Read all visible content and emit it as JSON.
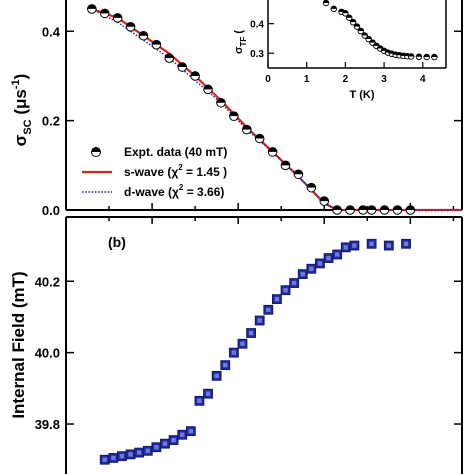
{
  "chart_data": [
    {
      "type": "scatter",
      "panel": "(a) main",
      "ylabel": "σ_SC (μs⁻¹)",
      "ylabel_main": "σ",
      "ylabel_sub": "SC",
      "ylabel_unit": "(μs",
      "ylabel_exp": "-1",
      "ylabel_close": ")",
      "xlim": [
        0.0,
        4.6
      ],
      "ylim": [
        0.0,
        0.47
      ],
      "yticks": [
        "0.0",
        "0.2",
        "0.4"
      ],
      "series": [
        {
          "name": "Expt. data (40 mT)",
          "kind": "points",
          "color": "#000000",
          "x": [
            0.3,
            0.45,
            0.6,
            0.75,
            0.9,
            1.05,
            1.2,
            1.35,
            1.5,
            1.65,
            1.8,
            1.95,
            2.1,
            2.25,
            2.4,
            2.55,
            2.7,
            2.85,
            3.0,
            3.15,
            3.3,
            3.45,
            3.55,
            3.7,
            3.85,
            4.0
          ],
          "y": [
            0.45,
            0.44,
            0.43,
            0.41,
            0.39,
            0.37,
            0.34,
            0.32,
            0.3,
            0.27,
            0.24,
            0.21,
            0.18,
            0.16,
            0.13,
            0.1,
            0.08,
            0.05,
            0.02,
            0.0,
            0.0,
            0.0,
            0.0,
            0.0,
            0.0,
            0.0
          ]
        },
        {
          "name": "s-wave",
          "chi2": "1.45",
          "kind": "line",
          "color": "#e0221b",
          "x": [
            0.3,
            0.6,
            0.9,
            1.2,
            1.5,
            1.8,
            2.1,
            2.4,
            2.7,
            2.85,
            3.0,
            3.15,
            4.6
          ],
          "y": [
            0.45,
            0.43,
            0.39,
            0.35,
            0.3,
            0.245,
            0.185,
            0.13,
            0.075,
            0.045,
            0.015,
            0.0,
            0.0
          ]
        },
        {
          "name": "d-wave",
          "chi2": "3.66",
          "kind": "dotted-line",
          "color": "#1f2a9e",
          "x": [
            0.3,
            0.6,
            0.9,
            1.2,
            1.5,
            1.8,
            2.1,
            2.4,
            2.7,
            2.85,
            3.0,
            3.15,
            4.6
          ],
          "y": [
            0.45,
            0.42,
            0.38,
            0.34,
            0.29,
            0.24,
            0.18,
            0.13,
            0.075,
            0.045,
            0.017,
            0.0,
            0.0
          ]
        }
      ],
      "legend": {
        "placement": "lower-left",
        "entries": [
          {
            "text": "Expt. data (40 mT)"
          },
          {
            "prefix": "s-wave  (χ",
            "exp": "2",
            "suffix": " = 1.45 )"
          },
          {
            "prefix": "d-wave  (χ",
            "exp": "2",
            "suffix": " = 3.66)"
          }
        ]
      }
    },
    {
      "type": "scatter",
      "panel": "(a) inset",
      "xlabel": "T (K)",
      "ylabel": "σ_TF (",
      "ylabel_main": "σ",
      "ylabel_sub": "TF",
      "ylabel_paren": "(",
      "xlim": [
        0,
        4.6
      ],
      "ylim": [
        0.25,
        0.48
      ],
      "xticks": [
        "0",
        "1",
        "2",
        "3",
        "4"
      ],
      "yticks": [
        "0.3",
        "0.4"
      ],
      "series": [
        {
          "name": "σ_TF",
          "color": "#000000",
          "x": [
            1.5,
            1.7,
            1.9,
            2.0,
            2.1,
            2.2,
            2.3,
            2.4,
            2.5,
            2.6,
            2.7,
            2.8,
            2.9,
            3.0,
            3.1,
            3.2,
            3.3,
            3.4,
            3.5,
            3.6,
            3.7,
            3.9,
            4.1,
            4.3
          ],
          "y": [
            0.47,
            0.45,
            0.44,
            0.435,
            0.42,
            0.405,
            0.39,
            0.375,
            0.36,
            0.348,
            0.336,
            0.325,
            0.316,
            0.308,
            0.302,
            0.298,
            0.295,
            0.293,
            0.291,
            0.29,
            0.289,
            0.288,
            0.287,
            0.287
          ]
        }
      ]
    },
    {
      "type": "scatter",
      "panel": "(b)",
      "panel_label": "(b)",
      "ylabel": "Internal Field (mT)",
      "xlim": [
        0.0,
        4.6
      ],
      "ylim": [
        39.66,
        40.38
      ],
      "yticks": [
        "39.8",
        "40.0",
        "40.2"
      ],
      "series": [
        {
          "name": "Internal Field",
          "color": "#1f2a9e",
          "x": [
            0.45,
            0.55,
            0.65,
            0.75,
            0.85,
            0.95,
            1.05,
            1.15,
            1.25,
            1.35,
            1.45,
            1.55,
            1.65,
            1.75,
            1.85,
            1.95,
            2.05,
            2.15,
            2.25,
            2.35,
            2.45,
            2.55,
            2.65,
            2.75,
            2.85,
            2.95,
            3.05,
            3.15,
            3.25,
            3.35,
            3.55,
            3.75,
            3.95
          ],
          "y": [
            39.7,
            39.705,
            39.71,
            39.715,
            39.72,
            39.725,
            39.735,
            39.745,
            39.755,
            39.77,
            39.78,
            39.865,
            39.885,
            39.935,
            39.965,
            40.0,
            40.025,
            40.055,
            40.09,
            40.12,
            40.15,
            40.175,
            40.195,
            40.22,
            40.235,
            40.25,
            40.265,
            40.275,
            40.295,
            40.3,
            40.305,
            40.3,
            40.305
          ]
        }
      ]
    }
  ]
}
